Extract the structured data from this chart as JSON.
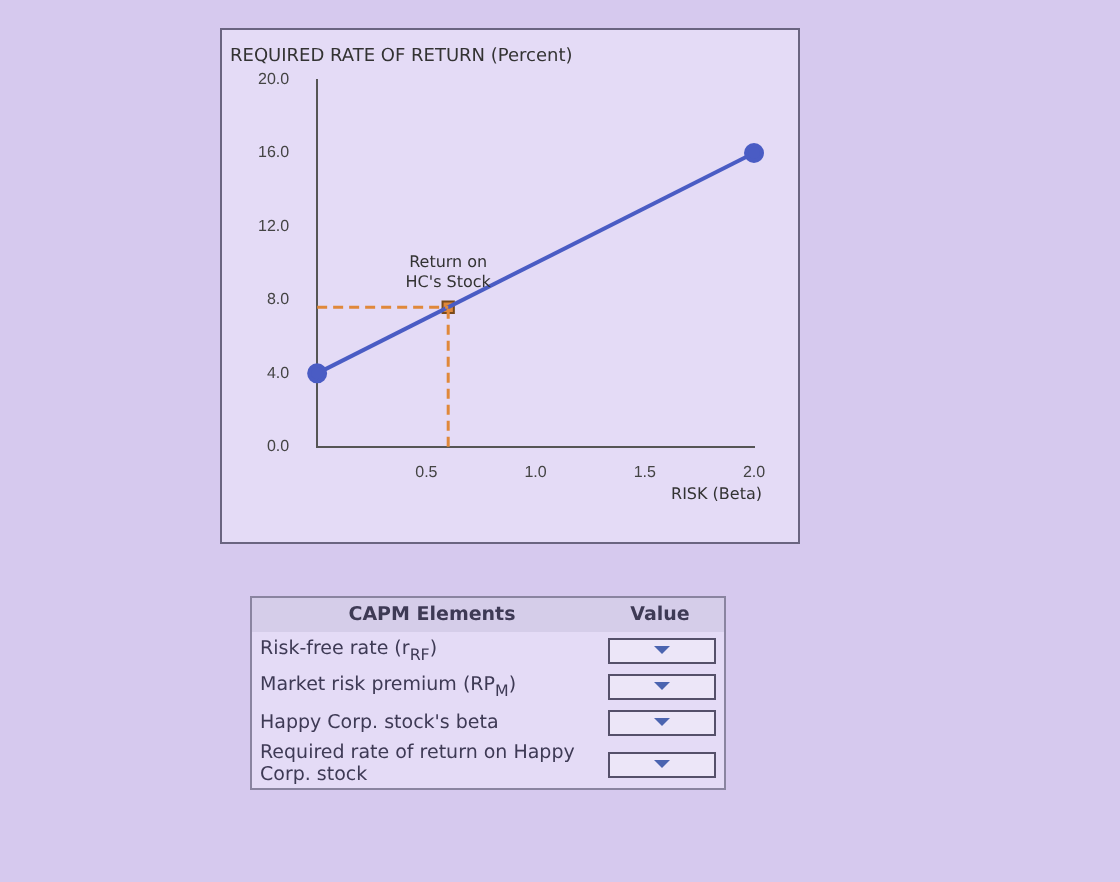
{
  "chart_data": {
    "type": "line",
    "ylabel": "REQUIRED RATE OF RETURN (Percent)",
    "xlabel": "RISK (Beta)",
    "xlim": [
      0,
      2
    ],
    "ylim": [
      0,
      20
    ],
    "xticks": [
      {
        "value": 0.5,
        "label": "0.5"
      },
      {
        "value": 1,
        "label": "1.0"
      },
      {
        "value": 1.5,
        "label": "1.5"
      },
      {
        "value": 2,
        "label": "2.0"
      }
    ],
    "yticks": [
      {
        "value": 0,
        "label": "0.0"
      },
      {
        "value": 4,
        "label": "4.0"
      },
      {
        "value": 8,
        "label": "8.0"
      },
      {
        "value": 12,
        "label": "12.0"
      },
      {
        "value": 16,
        "label": "16.0"
      },
      {
        "value": 20,
        "label": "20.0"
      }
    ],
    "series": [
      {
        "color": "#4a5cc4",
        "x": [
          0,
          2
        ],
        "values": [
          4,
          16
        ],
        "marker": "circle"
      },
      {
        "type": "scatter",
        "color": "#e0883a",
        "x": [
          0.6
        ],
        "values": [
          7.6
        ],
        "marker": "square"
      }
    ],
    "ref_lines": [
      {
        "axis": "x",
        "value": 0.6,
        "color": "#e0883a",
        "line_style": "dashed"
      },
      {
        "axis": "y",
        "value": 7.6,
        "color": "#e0883a",
        "line_style": "dashed"
      }
    ],
    "annotations": [
      {
        "text": "Return on HC's Stock",
        "x": 0.6,
        "y": 7.6
      },
      "CAPM Elements",
      "Value",
      "Risk-free rate (r$_{RF}$)",
      "Market risk premium (RP$_{M}$)",
      "Happy Corp. stock's beta",
      "Required rate of return on Happy Corp. stock"
    ],
    "grid": false,
    "legend": false
  }
}
